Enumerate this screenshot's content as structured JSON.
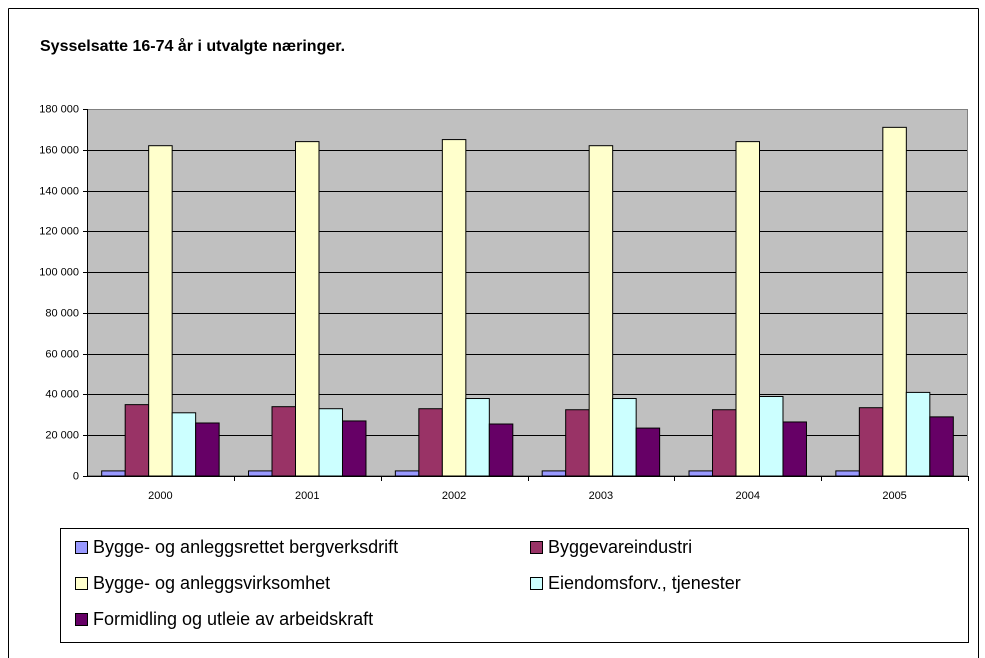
{
  "chart_data": {
    "type": "bar",
    "title": "Sysselsatte 16-74 år i utvalgte næringer.",
    "categories": [
      "2000",
      "2001",
      "2002",
      "2003",
      "2004",
      "2005"
    ],
    "series": [
      {
        "name": "Bygge- og anleggsrettet bergverksdrift",
        "color": "#9999ff",
        "values": [
          2500,
          2500,
          2500,
          2500,
          2500,
          2500
        ]
      },
      {
        "name": "Byggevareindustri",
        "color": "#993366",
        "values": [
          35000,
          34000,
          33000,
          32500,
          32500,
          33500
        ]
      },
      {
        "name": "Bygge- og anleggsvirksomhet",
        "color": "#ffffcc",
        "values": [
          162000,
          164000,
          165000,
          162000,
          164000,
          171000
        ]
      },
      {
        "name": "Eiendomsforv., tjenester",
        "color": "#ccffff",
        "values": [
          31000,
          33000,
          38000,
          38000,
          39000,
          41000
        ]
      },
      {
        "name": "Formidling og utleie av arbeidskraft",
        "color": "#660066",
        "values": [
          26000,
          27000,
          25500,
          23500,
          26500,
          29000
        ]
      }
    ],
    "ylim": [
      0,
      180000
    ],
    "yticks": [
      0,
      {
        "value": 20000,
        "label": "20 000"
      },
      {
        "value": 40000,
        "label": "40 000"
      },
      {
        "value": 60000,
        "label": "60 000"
      },
      {
        "value": 80000,
        "label": "80 000"
      },
      {
        "value": 100000,
        "label": "100 000"
      },
      {
        "value": 120000,
        "label": "120 000"
      },
      {
        "value": 140000,
        "label": "140 000"
      },
      {
        "value": 160000,
        "label": "160 000"
      },
      {
        "value": 180000,
        "label": "180 000"
      }
    ],
    "grid": true,
    "plot_background": "#c0c0c0"
  }
}
